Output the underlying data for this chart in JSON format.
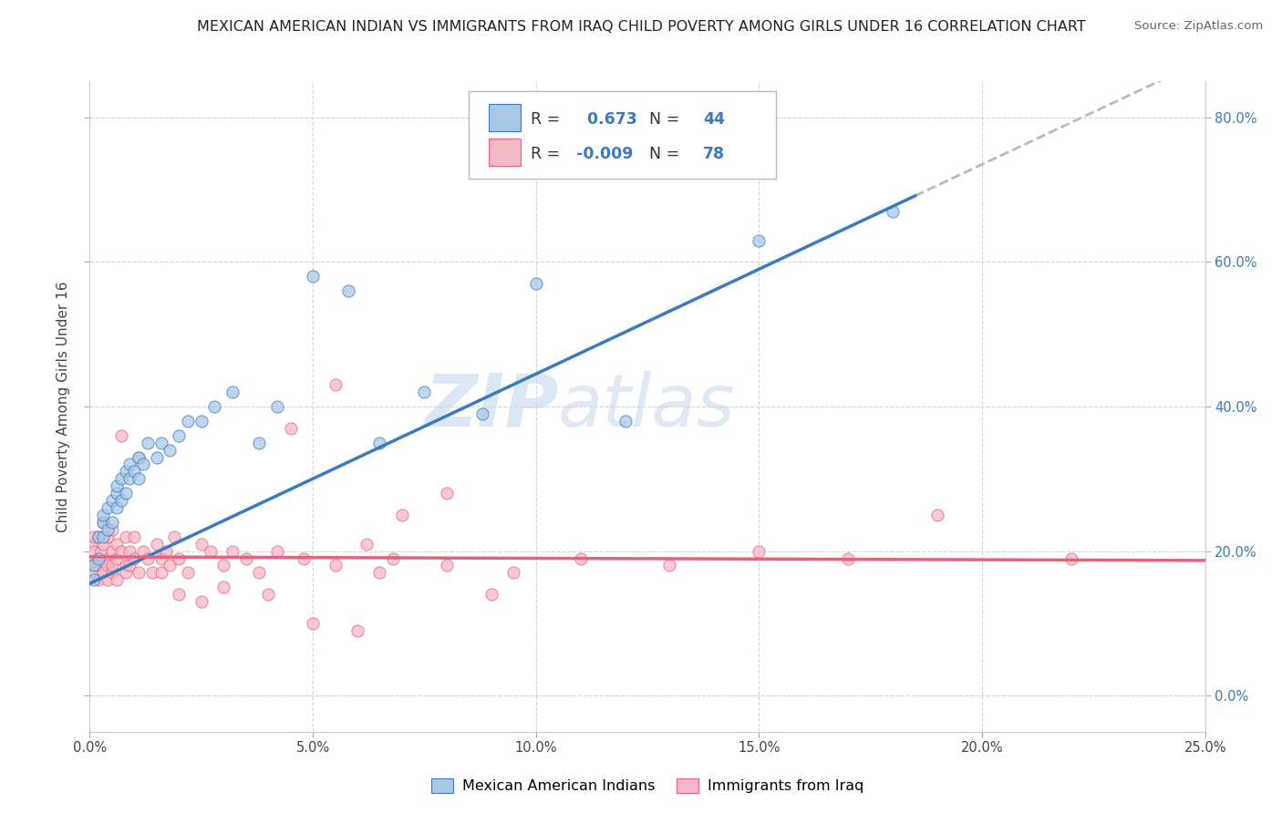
{
  "title": "MEXICAN AMERICAN INDIAN VS IMMIGRANTS FROM IRAQ CHILD POVERTY AMONG GIRLS UNDER 16 CORRELATION CHART",
  "source": "Source: ZipAtlas.com",
  "xlabel_ticks": [
    "0.0%",
    "5.0%",
    "10.0%",
    "15.0%",
    "20.0%",
    "25.0%"
  ],
  "ylabel_ticks_right": [
    "80.0%",
    "60.0%",
    "40.0%",
    "20.0%",
    "0.0%"
  ],
  "ylabel_label": "Child Poverty Among Girls Under 16",
  "legend_labels": [
    "Mexican American Indians",
    "Immigrants from Iraq"
  ],
  "blue_color": "#a8c8e8",
  "pink_color": "#f4b8c8",
  "blue_line_color": "#3a7abf",
  "pink_line_color": "#e8607a",
  "dashed_line_color": "#bbbbbb",
  "watermark_zip": "ZIP",
  "watermark_atlas": "atlas",
  "R_blue": 0.673,
  "N_blue": 44,
  "R_pink": -0.009,
  "N_pink": 78,
  "blue_scatter_x": [
    0.001,
    0.001,
    0.002,
    0.002,
    0.003,
    0.003,
    0.003,
    0.004,
    0.004,
    0.005,
    0.005,
    0.006,
    0.006,
    0.006,
    0.007,
    0.007,
    0.008,
    0.008,
    0.009,
    0.009,
    0.01,
    0.011,
    0.011,
    0.012,
    0.013,
    0.015,
    0.016,
    0.018,
    0.02,
    0.022,
    0.025,
    0.028,
    0.032,
    0.038,
    0.042,
    0.05,
    0.058,
    0.065,
    0.075,
    0.088,
    0.1,
    0.12,
    0.15,
    0.18
  ],
  "blue_scatter_y": [
    0.16,
    0.18,
    0.19,
    0.22,
    0.22,
    0.24,
    0.25,
    0.23,
    0.26,
    0.24,
    0.27,
    0.26,
    0.28,
    0.29,
    0.27,
    0.3,
    0.28,
    0.31,
    0.3,
    0.32,
    0.31,
    0.33,
    0.3,
    0.32,
    0.35,
    0.33,
    0.35,
    0.34,
    0.36,
    0.38,
    0.38,
    0.4,
    0.42,
    0.35,
    0.4,
    0.58,
    0.56,
    0.35,
    0.42,
    0.39,
    0.57,
    0.38,
    0.63,
    0.67
  ],
  "pink_scatter_x": [
    0.0003,
    0.0005,
    0.001,
    0.001,
    0.001,
    0.0015,
    0.002,
    0.002,
    0.002,
    0.0025,
    0.003,
    0.003,
    0.003,
    0.003,
    0.004,
    0.004,
    0.004,
    0.004,
    0.005,
    0.005,
    0.005,
    0.005,
    0.006,
    0.006,
    0.006,
    0.007,
    0.007,
    0.008,
    0.008,
    0.008,
    0.009,
    0.009,
    0.01,
    0.01,
    0.011,
    0.011,
    0.012,
    0.013,
    0.014,
    0.015,
    0.016,
    0.016,
    0.017,
    0.018,
    0.019,
    0.02,
    0.022,
    0.025,
    0.027,
    0.03,
    0.032,
    0.035,
    0.038,
    0.042,
    0.048,
    0.055,
    0.062,
    0.068,
    0.08,
    0.095,
    0.11,
    0.13,
    0.15,
    0.17,
    0.02,
    0.025,
    0.03,
    0.04,
    0.05,
    0.06,
    0.07,
    0.09,
    0.045,
    0.055,
    0.065,
    0.08,
    0.19,
    0.22
  ],
  "pink_scatter_y": [
    0.18,
    0.21,
    0.2,
    0.17,
    0.22,
    0.18,
    0.19,
    0.22,
    0.16,
    0.2,
    0.18,
    0.21,
    0.17,
    0.24,
    0.19,
    0.16,
    0.22,
    0.18,
    0.2,
    0.17,
    0.23,
    0.18,
    0.19,
    0.21,
    0.16,
    0.2,
    0.36,
    0.18,
    0.22,
    0.17,
    0.2,
    0.18,
    0.19,
    0.22,
    0.17,
    0.33,
    0.2,
    0.19,
    0.17,
    0.21,
    0.19,
    0.17,
    0.2,
    0.18,
    0.22,
    0.19,
    0.17,
    0.21,
    0.2,
    0.18,
    0.2,
    0.19,
    0.17,
    0.2,
    0.19,
    0.18,
    0.21,
    0.19,
    0.18,
    0.17,
    0.19,
    0.18,
    0.2,
    0.19,
    0.14,
    0.13,
    0.15,
    0.14,
    0.1,
    0.09,
    0.25,
    0.14,
    0.37,
    0.43,
    0.17,
    0.28,
    0.25,
    0.19
  ],
  "xlim": [
    0,
    0.25
  ],
  "ylim": [
    -0.05,
    0.85
  ],
  "ytick_vals": [
    0.0,
    0.2,
    0.4,
    0.6,
    0.8
  ],
  "xtick_vals": [
    0.0,
    0.05,
    0.1,
    0.15,
    0.2,
    0.25
  ],
  "background_color": "#ffffff",
  "grid_color": "#d5d5d5",
  "blue_reg_intercept": 0.155,
  "blue_reg_slope": 2.9,
  "pink_reg_intercept": 0.192,
  "pink_reg_slope": -0.02
}
